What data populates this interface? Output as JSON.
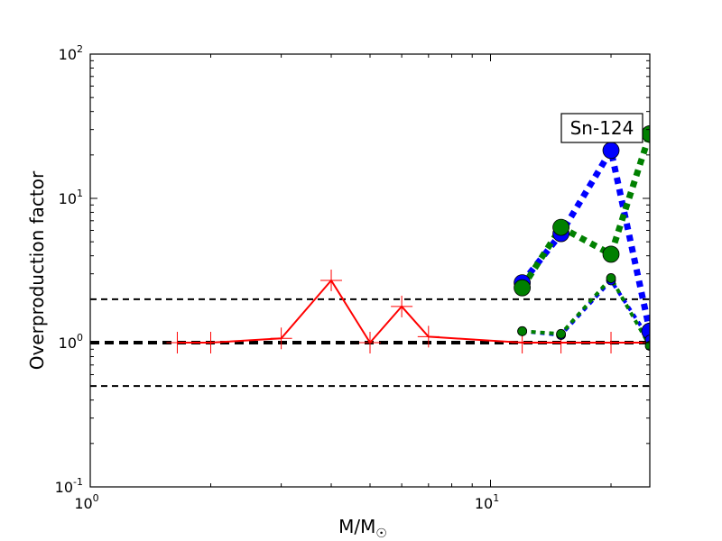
{
  "chart_data": {
    "type": "line",
    "xlabel": "M/M",
    "xlabel_sub": "☉",
    "ylabel": "Overproduction factor",
    "x_scale": "log",
    "y_scale": "log",
    "xlim": [
      1,
      25
    ],
    "ylim": [
      0.1,
      100
    ],
    "x_ticks": [
      {
        "value": 1,
        "base": "10",
        "exp": "0"
      },
      {
        "value": 10,
        "base": "10",
        "exp": "1"
      }
    ],
    "y_ticks": [
      {
        "value": 0.1,
        "base": "10",
        "exp": "-1"
      },
      {
        "value": 1,
        "base": "10",
        "exp": "0"
      },
      {
        "value": 10,
        "base": "10",
        "exp": "1"
      },
      {
        "value": 100,
        "base": "10",
        "exp": "2"
      }
    ],
    "annotation": "Sn-124",
    "reference_lines": [
      {
        "y": 2.0,
        "style": "dashed",
        "color": "#000000"
      },
      {
        "y": 1.0,
        "style": "thick-dashed",
        "color": "#000000"
      },
      {
        "y": 0.5,
        "style": "dashed",
        "color": "#000000"
      }
    ],
    "series": [
      {
        "color": "#ff0000",
        "style": "solid",
        "marker": "plus",
        "points": [
          [
            1.65,
            1.0
          ],
          [
            2.0,
            1.0
          ],
          [
            3.0,
            1.07
          ],
          [
            4.0,
            2.7
          ],
          [
            5.0,
            1.0
          ],
          [
            6.0,
            1.78
          ],
          [
            7.0,
            1.1
          ],
          [
            12.0,
            1.0
          ],
          [
            15.0,
            1.0
          ],
          [
            20.0,
            1.0
          ],
          [
            25.0,
            1.0
          ]
        ]
      },
      {
        "color": "#0000ff",
        "style": "dotted",
        "marker": "circle-large",
        "points": [
          [
            12.0,
            2.6
          ],
          [
            15.0,
            5.7
          ],
          [
            20.0,
            21.5
          ],
          [
            25.0,
            1.2
          ]
        ]
      },
      {
        "color": "#008000",
        "style": "dotted",
        "marker": "circle-large",
        "points": [
          [
            12.0,
            2.4
          ],
          [
            15.0,
            6.3
          ],
          [
            20.0,
            4.1
          ],
          [
            25.0,
            28.0
          ]
        ]
      },
      {
        "color": "#0000ff",
        "style": "dotted-thin",
        "marker": "circle-small",
        "points": [
          [
            12.0,
            1.2
          ],
          [
            15.0,
            1.13
          ],
          [
            20.0,
            2.7
          ],
          [
            25.0,
            1.05
          ]
        ]
      },
      {
        "color": "#008000",
        "style": "dotted-thin",
        "marker": "circle-small",
        "points": [
          [
            12.0,
            1.2
          ],
          [
            15.0,
            1.15
          ],
          [
            20.0,
            2.8
          ],
          [
            25.0,
            0.95
          ]
        ]
      }
    ]
  }
}
